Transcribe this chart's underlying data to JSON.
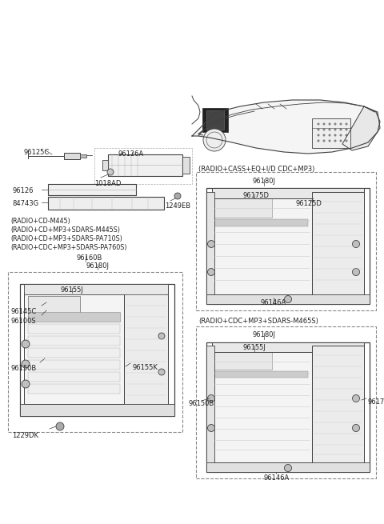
{
  "bg_color": "#ffffff",
  "line_color": "#404040",
  "text_color": "#222222",
  "fig_w": 4.8,
  "fig_h": 6.55,
  "dpi": 100,
  "label_fs": 6.5,
  "small_fs": 6.0,
  "box1_title_lines": [
    "(RADIO+CD-M445)",
    "(RADIO+CD+MP3+SDARS-M445S)",
    "(RADIO+CD+MP3+SDARS-PA710S)",
    "(RADIO+CDC+MP3+SDARS-PA760S)"
  ],
  "box2_title": "(RADIO+CASS+EQ+I/D CDC+MP3)",
  "box3_title": "(RADIO+CDC+MP3+SDARS-M465S)"
}
